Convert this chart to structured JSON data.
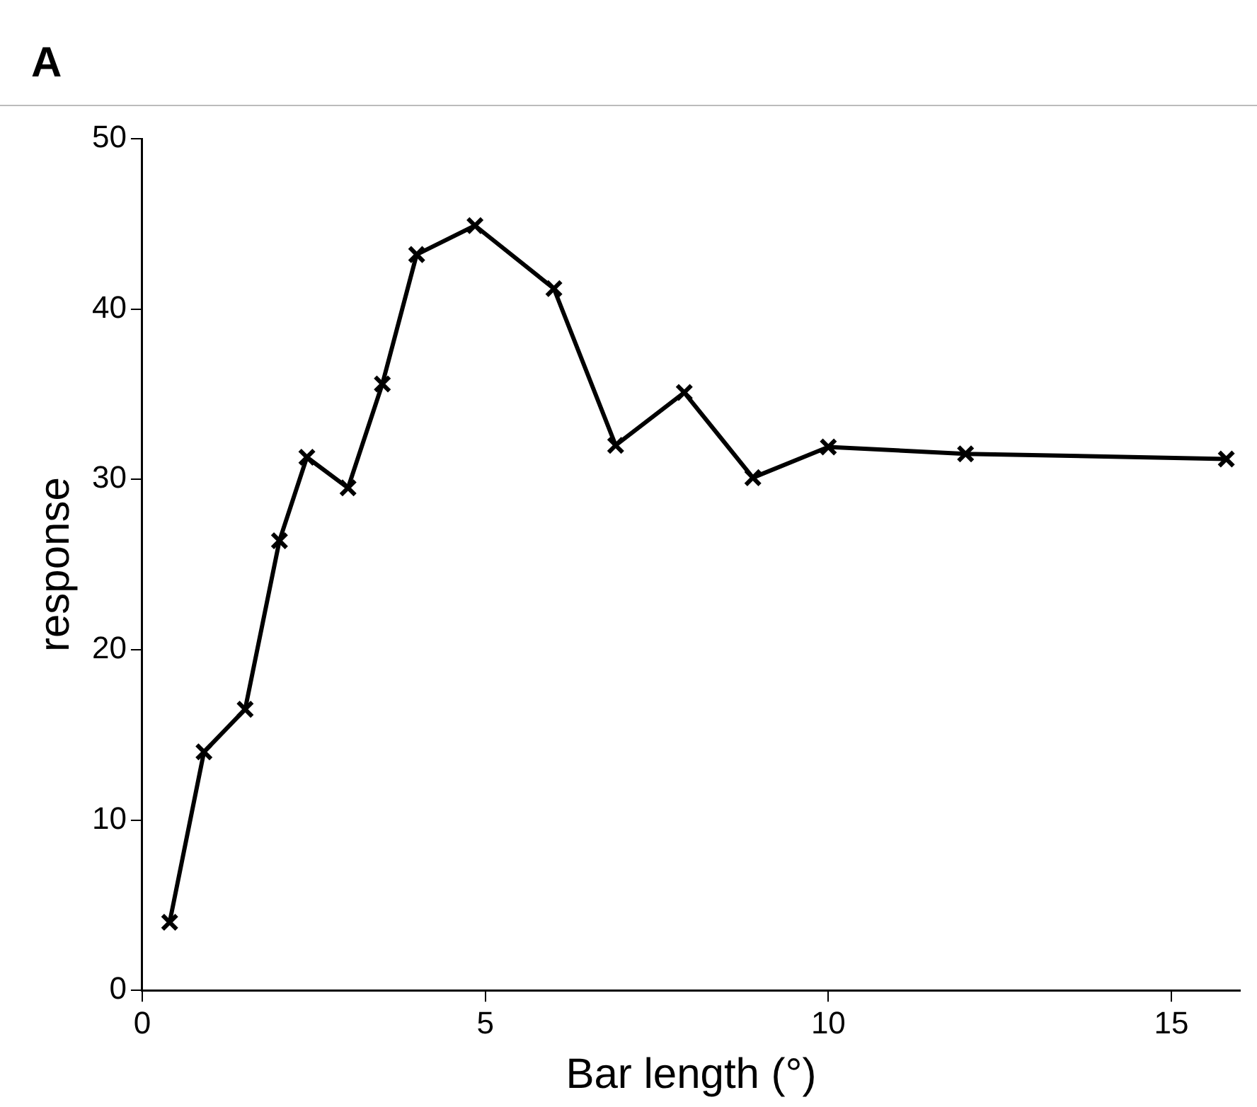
{
  "chart_data": {
    "type": "line",
    "title": "A",
    "xlabel": "Bar length (°)",
    "ylabel": "response",
    "x": [
      0.4,
      0.9,
      1.5,
      2,
      2.4,
      3,
      3.5,
      4,
      4.85,
      6,
      6.9,
      7.9,
      8.9,
      10,
      12,
      15.8
    ],
    "series": [
      {
        "color": "#000000",
        "values": [
          4,
          14,
          16.5,
          26.4,
          31.3,
          29.5,
          35.6,
          43.2,
          44.9,
          41.2,
          32,
          35.1,
          30.1,
          31.9,
          31.5,
          31.2
        ]
      }
    ],
    "xlim": [
      0,
      16
    ],
    "xticks": [
      0,
      5,
      10,
      15
    ],
    "ylim": [
      0,
      50
    ],
    "yticks": [
      0,
      10,
      20,
      30,
      40,
      50
    ],
    "grid": false,
    "legend": false,
    "marker": "cross",
    "line_style": "solid"
  }
}
